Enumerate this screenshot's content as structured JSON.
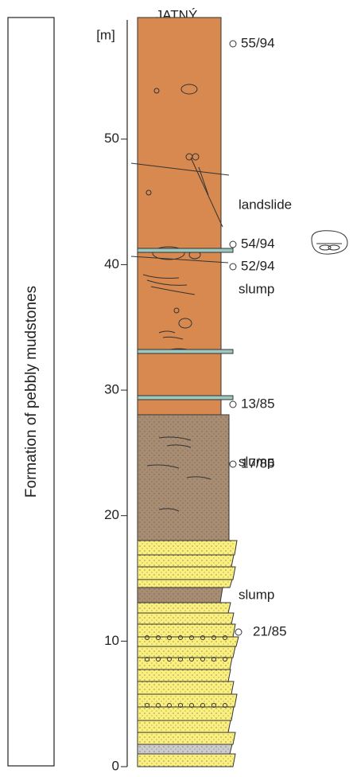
{
  "title": "JATNÝ",
  "formation": "Formation of pebbly mudstones",
  "axis": {
    "unit": "[m]",
    "ylim": [
      0,
      59.5
    ],
    "ticks": [
      0,
      10,
      20,
      30,
      40,
      50
    ]
  },
  "samples": [
    "55/94",
    "54/94",
    "52/94",
    "13/85",
    "17/85",
    "21/85"
  ],
  "units": [
    "landslide",
    "slump",
    "slump",
    "slump"
  ]
}
